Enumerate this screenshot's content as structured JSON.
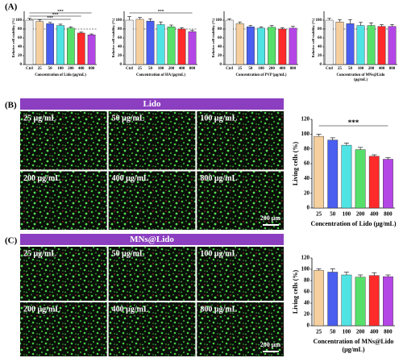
{
  "panel_labels": [
    "(A)",
    "(B)",
    "(C)"
  ],
  "image_panels": [
    {
      "title": "Lido",
      "labels": [
        "25 μg/mL",
        "50 μg/mL",
        "100 μg/mL",
        "200 μg/mL",
        "400 μg/mL",
        "800 μg/mL"
      ],
      "scale_bar": "200 μm"
    },
    {
      "title": "MNs@Lido",
      "labels": [
        "25 μg/mL",
        "50 μg/mL",
        "100 μg/mL",
        "200 μg/mL",
        "400 μg/mL",
        "800 μg/mL"
      ],
      "scale_bar": "200 μm"
    }
  ],
  "chart_data": [
    {
      "type": "bar",
      "ylabel": "Relative cell viability (%)",
      "xlabel": [
        "Concentration of Lido (μg/mL)"
      ],
      "categories": [
        "Ctrl",
        "25",
        "50",
        "100",
        "200",
        "400",
        "800"
      ],
      "values": [
        100,
        97,
        92,
        88,
        82,
        71,
        67
      ],
      "errors": [
        4,
        4,
        3,
        3,
        3,
        2,
        2
      ],
      "colors": [
        "#f2f2f2",
        "#f6cf9e",
        "#4a5ef0",
        "#4fe3e3",
        "#56e06a",
        "#ff2a2a",
        "#b446e6"
      ],
      "ylim": [
        0,
        120
      ],
      "yticks": [
        0,
        20,
        40,
        60,
        80,
        100
      ],
      "reference_line": 80,
      "annotations": [
        "***",
        "***",
        "***"
      ]
    },
    {
      "type": "bar",
      "ylabel": "Relative cell viability (%)",
      "xlabel": [
        "Concentration of HA (μg/mL)"
      ],
      "categories": [
        "Ctrl",
        "25",
        "50",
        "100",
        "200",
        "400",
        "800"
      ],
      "values": [
        100,
        102,
        98,
        90,
        85,
        80,
        74
      ],
      "errors": [
        8,
        4,
        5,
        6,
        4,
        3,
        3
      ],
      "colors": [
        "#f2f2f2",
        "#f6cf9e",
        "#4a5ef0",
        "#4fe3e3",
        "#56e06a",
        "#ff2a2a",
        "#b446e6"
      ],
      "ylim": [
        0,
        120
      ],
      "yticks": [
        0,
        20,
        40,
        60,
        80,
        100
      ],
      "reference_line": 80,
      "annotations": [
        "***"
      ]
    },
    {
      "type": "bar",
      "ylabel": "Relative cell viability (%)",
      "xlabel": [
        "Concentration of PVP (μg/mL)"
      ],
      "categories": [
        "Ctrl",
        "25",
        "50",
        "100",
        "200",
        "400",
        "800"
      ],
      "values": [
        100,
        92,
        85,
        82,
        84,
        80,
        82
      ],
      "errors": [
        3,
        4,
        3,
        3,
        4,
        3,
        4
      ],
      "colors": [
        "#f2f2f2",
        "#f6cf9e",
        "#4a5ef0",
        "#4fe3e3",
        "#56e06a",
        "#ff2a2a",
        "#b446e6"
      ],
      "ylim": [
        0,
        120
      ],
      "yticks": [
        0,
        20,
        40,
        60,
        80,
        100
      ],
      "reference_line": 80,
      "annotations": []
    },
    {
      "type": "bar",
      "ylabel": "Relative cell viability (%)",
      "xlabel": [
        "Concentration of MNs@Lido",
        "(μg/mL)"
      ],
      "categories": [
        "Ctrl",
        "25",
        "50",
        "100",
        "200",
        "400",
        "800"
      ],
      "values": [
        100,
        96,
        92,
        88,
        88,
        86,
        86
      ],
      "errors": [
        4,
        5,
        9,
        7,
        6,
        4,
        4
      ],
      "colors": [
        "#f2f2f2",
        "#f6cf9e",
        "#4a5ef0",
        "#4fe3e3",
        "#56e06a",
        "#ff2a2a",
        "#b446e6"
      ],
      "ylim": [
        0,
        120
      ],
      "yticks": [
        0,
        20,
        40,
        60,
        80,
        100
      ],
      "reference_line": 80,
      "annotations": []
    },
    {
      "type": "bar",
      "ylabel": "Living cells (%)",
      "xlabel": [
        "Concentration of Lido (μg/mL)"
      ],
      "categories": [
        "25",
        "50",
        "100",
        "200",
        "400",
        "800"
      ],
      "values": [
        97,
        92,
        85,
        79,
        70,
        66
      ],
      "errors": [
        3,
        3,
        3,
        3,
        2,
        2
      ],
      "colors": [
        "#f6cf9e",
        "#4a5ef0",
        "#4fe3e3",
        "#56e06a",
        "#ff2a2a",
        "#b446e6"
      ],
      "ylim": [
        0,
        120
      ],
      "yticks": [
        0,
        20,
        40,
        60,
        80,
        100,
        120
      ],
      "annotations": [
        "***"
      ]
    },
    {
      "type": "bar",
      "ylabel": "Living cells (%)",
      "xlabel": [
        "Concentration of MNs@Lido",
        "(μg/mL)"
      ],
      "categories": [
        "25",
        "50",
        "100",
        "200",
        "400",
        "800"
      ],
      "values": [
        98,
        95,
        90,
        86,
        89,
        87
      ],
      "errors": [
        3,
        6,
        5,
        4,
        5,
        3
      ],
      "colors": [
        "#f6cf9e",
        "#4a5ef0",
        "#4fe3e3",
        "#56e06a",
        "#ff2a2a",
        "#b446e6"
      ],
      "ylim": [
        0,
        120
      ],
      "yticks": [
        0,
        20,
        40,
        60,
        80,
        100,
        120
      ],
      "annotations": []
    }
  ]
}
